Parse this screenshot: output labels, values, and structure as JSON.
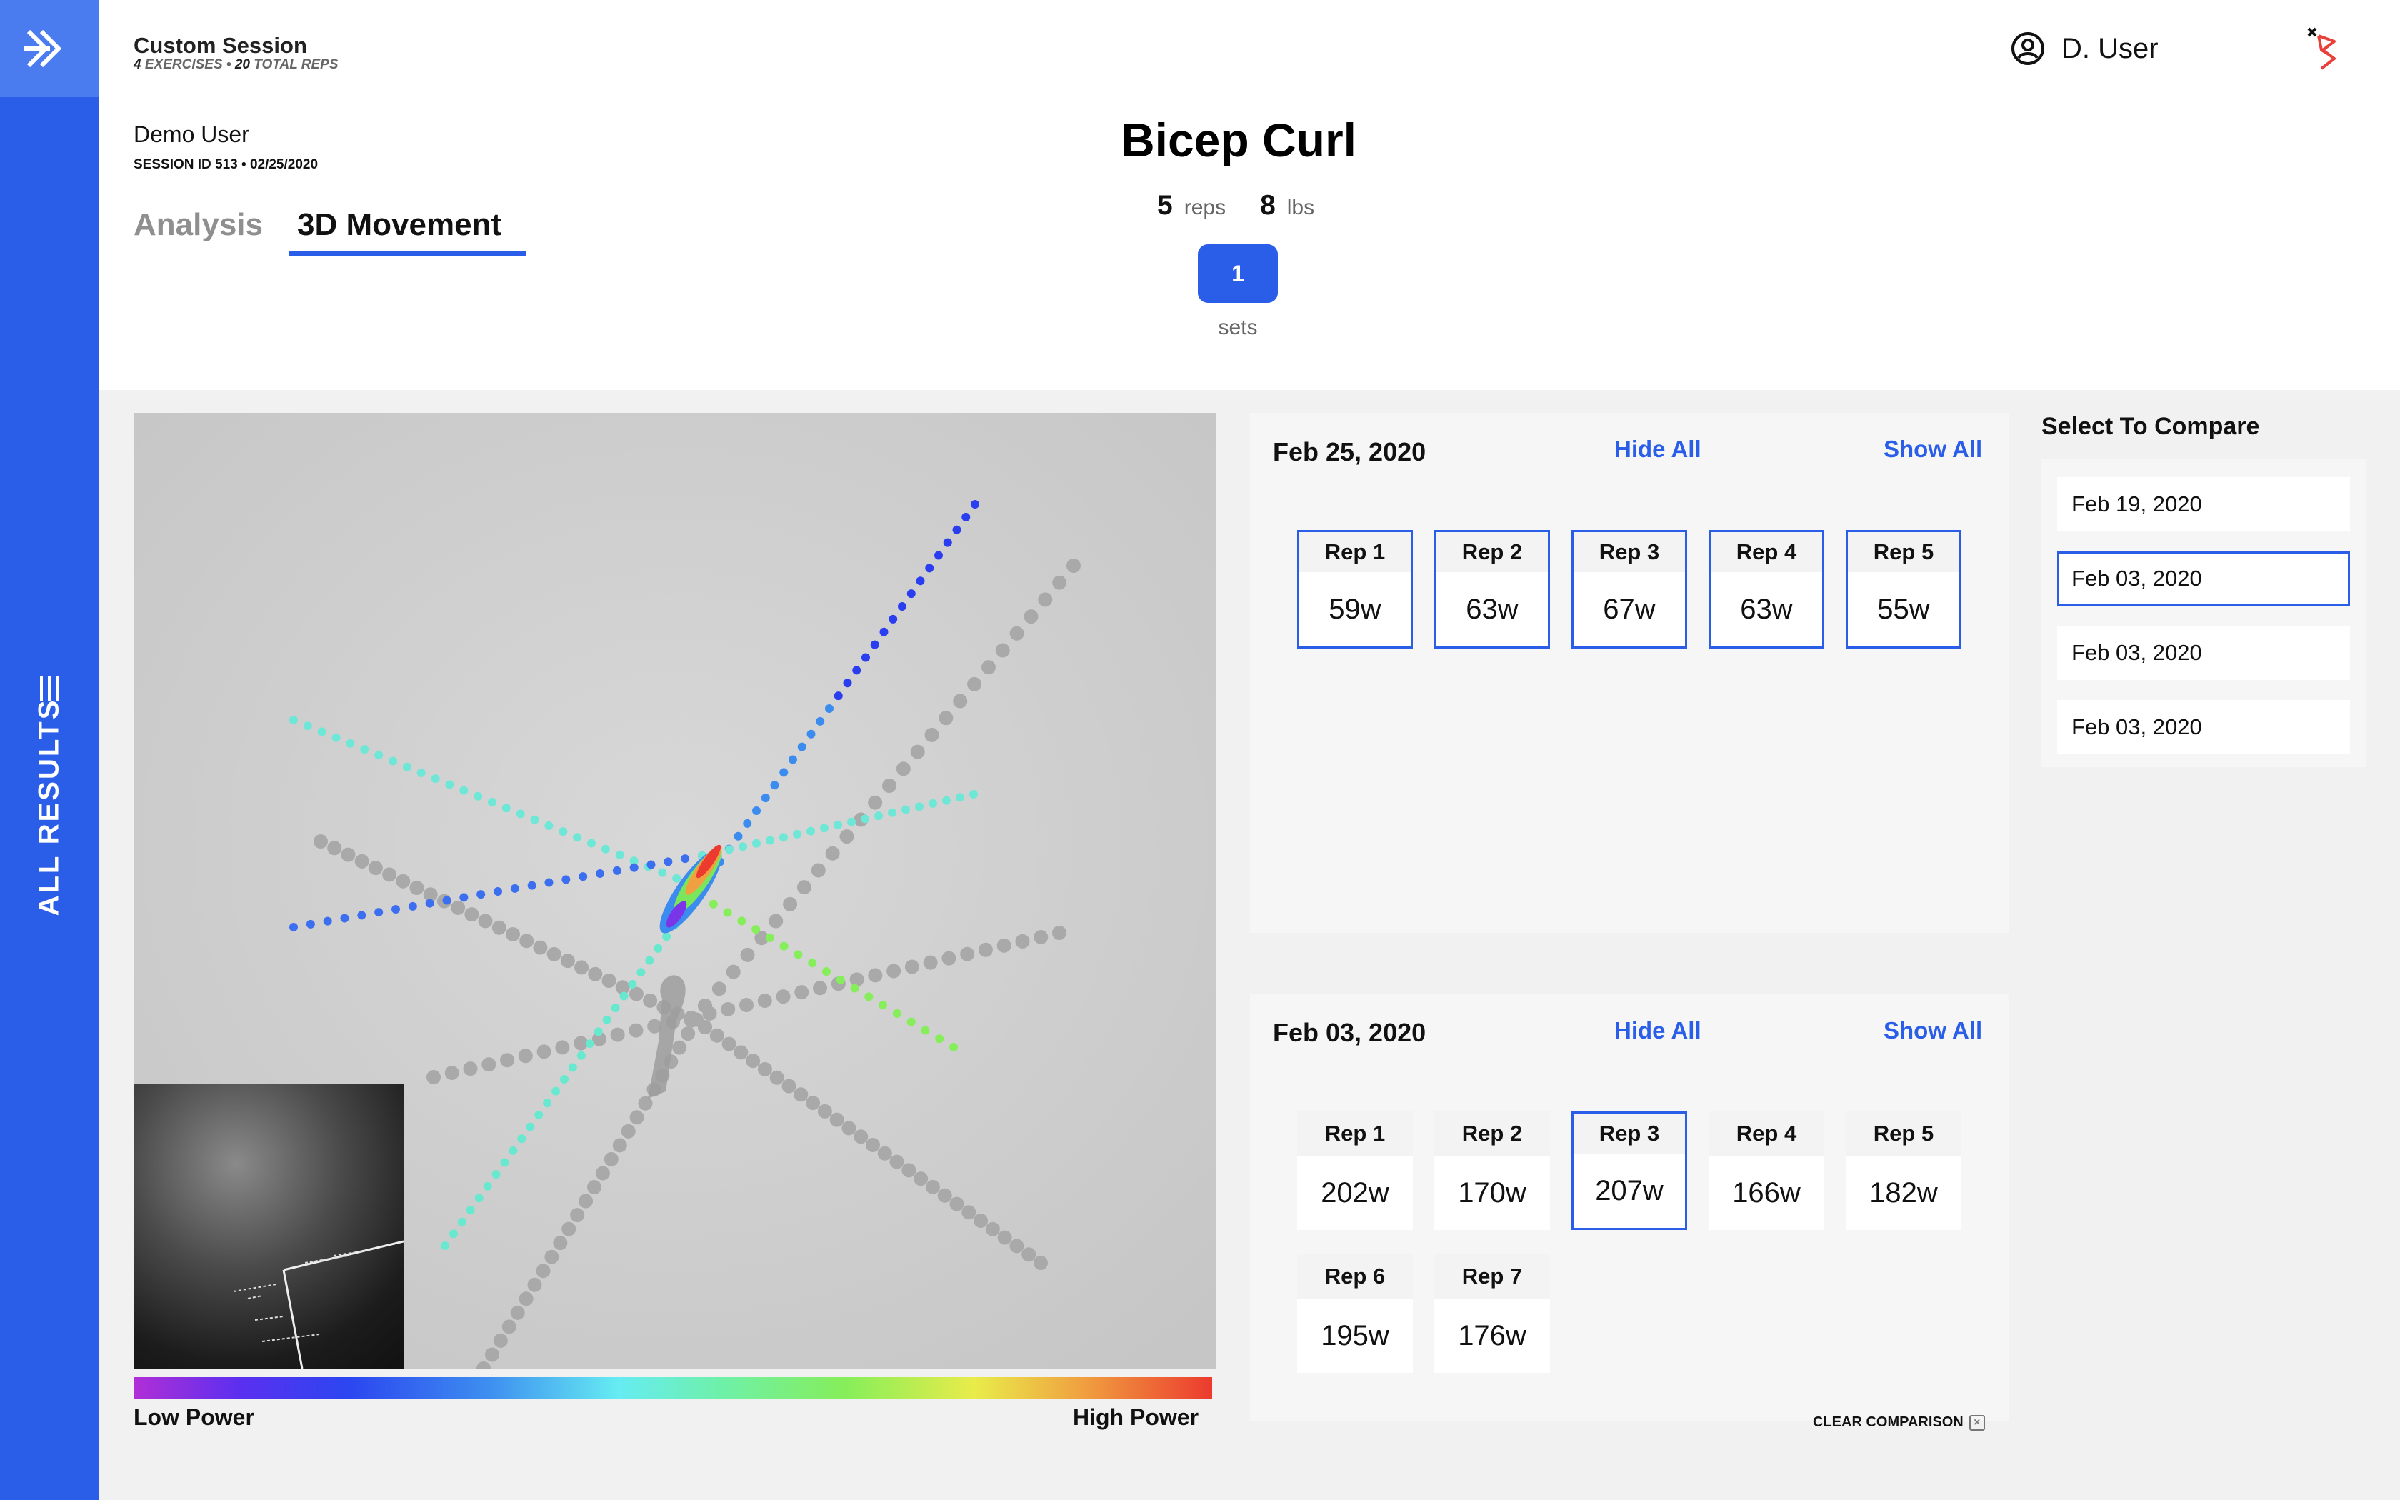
{
  "sidebar": {
    "label": "ALL RESULTS"
  },
  "session": {
    "title": "Custom Session",
    "exercises_count": "4",
    "exercises_label": "EXERCISES",
    "separator": "•",
    "reps_count": "20",
    "reps_label": "TOTAL REPS",
    "user": "Demo User",
    "id_line": "SESSION ID 513 • 02/25/2020"
  },
  "tabs": [
    {
      "label": "Analysis",
      "active": false
    },
    {
      "label": "3D Movement",
      "active": true
    }
  ],
  "exercise": {
    "name": "Bicep Curl",
    "reps_value": "5",
    "reps_unit": "reps",
    "weight_value": "8",
    "weight_unit": "lbs",
    "set_button": "1",
    "sets_label": "sets"
  },
  "user_menu": {
    "name": "D. User"
  },
  "legend": {
    "low": "Low Power",
    "high": "High Power"
  },
  "panels": [
    {
      "date": "Feb 25, 2020",
      "hide_all": "Hide All",
      "show_all": "Show All",
      "reps": [
        {
          "label": "Rep 1",
          "value": "59w",
          "selected": true
        },
        {
          "label": "Rep 2",
          "value": "63w",
          "selected": true
        },
        {
          "label": "Rep 3",
          "value": "67w",
          "selected": true
        },
        {
          "label": "Rep 4",
          "value": "63w",
          "selected": true
        },
        {
          "label": "Rep 5",
          "value": "55w",
          "selected": true
        }
      ]
    },
    {
      "date": "Feb 03, 2020",
      "hide_all": "Hide All",
      "show_all": "Show All",
      "reps": [
        {
          "label": "Rep 1",
          "value": "202w",
          "selected": false
        },
        {
          "label": "Rep 2",
          "value": "170w",
          "selected": false
        },
        {
          "label": "Rep 3",
          "value": "207w",
          "selected": true
        },
        {
          "label": "Rep 4",
          "value": "166w",
          "selected": false
        },
        {
          "label": "Rep 5",
          "value": "182w",
          "selected": false
        },
        {
          "label": "Rep 6",
          "value": "195w",
          "selected": false
        },
        {
          "label": "Rep 7",
          "value": "176w",
          "selected": false
        }
      ]
    }
  ],
  "compare": {
    "title": "Select To Compare",
    "items": [
      {
        "label": "Feb 19, 2020",
        "selected": false
      },
      {
        "label": "Feb 03, 2020",
        "selected": true
      },
      {
        "label": "Feb 03, 2020",
        "selected": false
      },
      {
        "label": "Feb 03, 2020",
        "selected": false
      }
    ]
  },
  "clear_comparison": "CLEAR COMPARISON",
  "colors": {
    "accent": "#2a5ee8",
    "sidebar": "#2a5ee8",
    "logo_tile": "#4a7bef",
    "brand_mark": "#e8413a"
  }
}
